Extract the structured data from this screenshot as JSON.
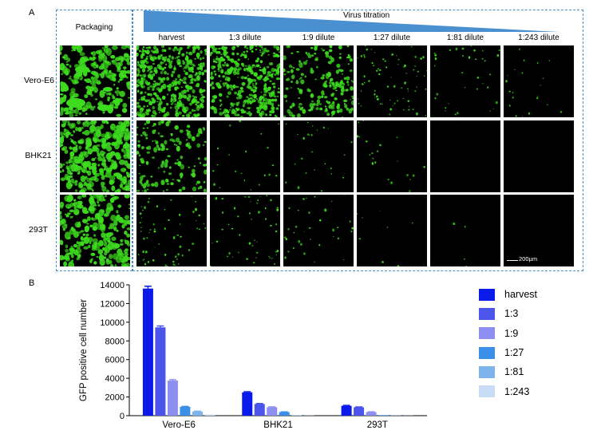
{
  "panel_a": {
    "label": "A",
    "packaging_label": "Packaging",
    "titration_label": "Virus titration",
    "columns": [
      "harvest",
      "1:3 dilute",
      "1:9 dilute",
      "1:27 dilute",
      "1:81 dilute",
      "1:243 dilute"
    ],
    "rows": [
      "Vero-E6",
      "BHK21",
      "293T"
    ],
    "scale_bar_label": "200μm",
    "colors": {
      "fluorescence": "#3ddc1e",
      "background": "#000000",
      "frame": "#4a90c8",
      "wedge": "#4a8fd0"
    }
  },
  "panel_b": {
    "label": "B",
    "chart_data": {
      "type": "bar",
      "ylabel": "GFP positive cell number",
      "ylim": [
        0,
        14000
      ],
      "yticks": [
        0,
        2000,
        4000,
        6000,
        8000,
        10000,
        12000,
        14000
      ],
      "categories": [
        "Vero-E6",
        "BHK21",
        "293T"
      ],
      "series": [
        {
          "name": "harvest",
          "color": "#0a1ae8",
          "values": [
            13600,
            2500,
            1050
          ],
          "errors": [
            250,
            60,
            50
          ]
        },
        {
          "name": "1:3",
          "color": "#4b55ea",
          "values": [
            9450,
            1250,
            900
          ],
          "errors": [
            150,
            50,
            40
          ]
        },
        {
          "name": "1:9",
          "color": "#8c8ff0",
          "values": [
            3750,
            900,
            380
          ],
          "errors": [
            100,
            40,
            30
          ]
        },
        {
          "name": "1:27",
          "color": "#3b8fe8",
          "values": [
            950,
            380,
            60
          ],
          "errors": [
            40,
            25,
            10
          ]
        },
        {
          "name": "1:81",
          "color": "#7fb3ec",
          "values": [
            450,
            40,
            30
          ],
          "errors": [
            30,
            10,
            5
          ]
        },
        {
          "name": "1:243",
          "color": "#c8dcf6",
          "values": [
            120,
            20,
            15
          ],
          "errors": [
            15,
            5,
            5
          ]
        }
      ]
    }
  }
}
